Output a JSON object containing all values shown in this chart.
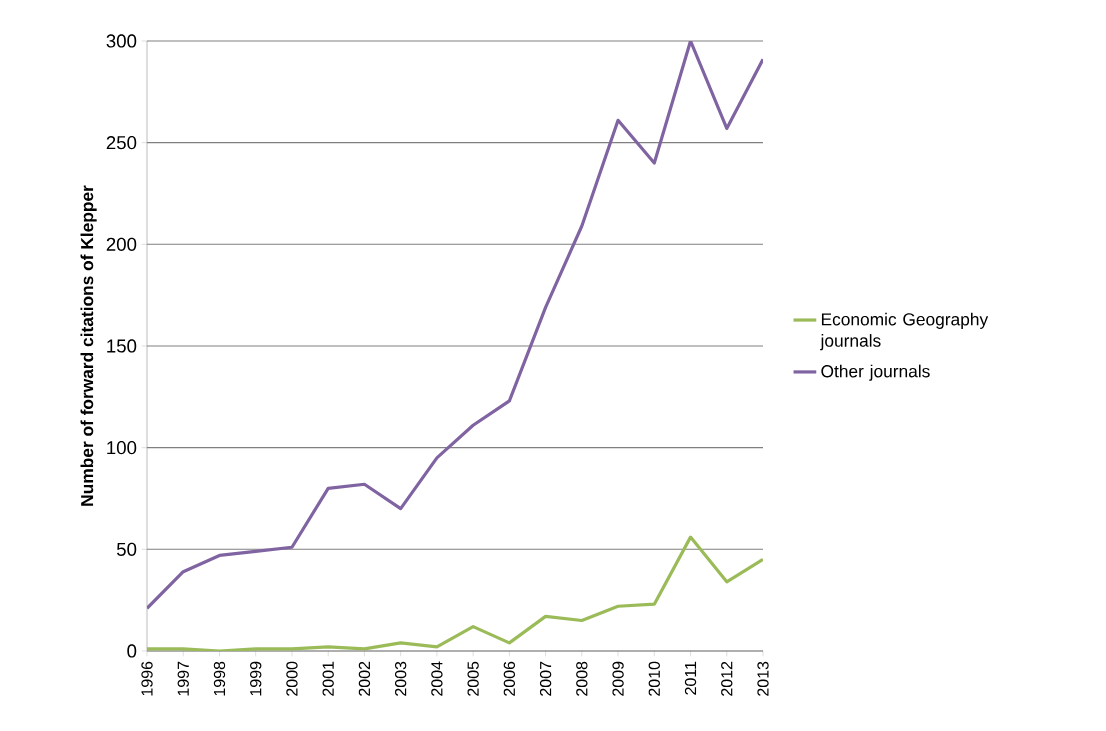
{
  "chart_data": {
    "type": "line",
    "ylabel": "Number of forward citations of Klepper",
    "categories": [
      "1996",
      "1997",
      "1998",
      "1999",
      "2000",
      "2001",
      "2002",
      "2003",
      "2004",
      "2005",
      "2006",
      "2007",
      "2008",
      "2009",
      "2010",
      "2011",
      "2012",
      "2013"
    ],
    "series": [
      {
        "name": "Economic Geography journals",
        "color": "#9bbb59",
        "values": [
          1,
          1,
          0,
          1,
          1,
          2,
          1,
          4,
          2,
          12,
          4,
          17,
          15,
          22,
          23,
          56,
          34,
          45
        ]
      },
      {
        "name": "Other journals",
        "color": "#8064a2",
        "values": [
          21,
          39,
          47,
          49,
          51,
          80,
          82,
          70,
          95,
          111,
          123,
          169,
          209,
          261,
          240,
          300,
          257,
          291
        ]
      }
    ],
    "ylim": [
      0,
      300
    ],
    "yticks": [
      0,
      50,
      100,
      150,
      200,
      250,
      300
    ],
    "grid": "y",
    "legend": "right",
    "marker": "none",
    "line_style": "solid"
  }
}
